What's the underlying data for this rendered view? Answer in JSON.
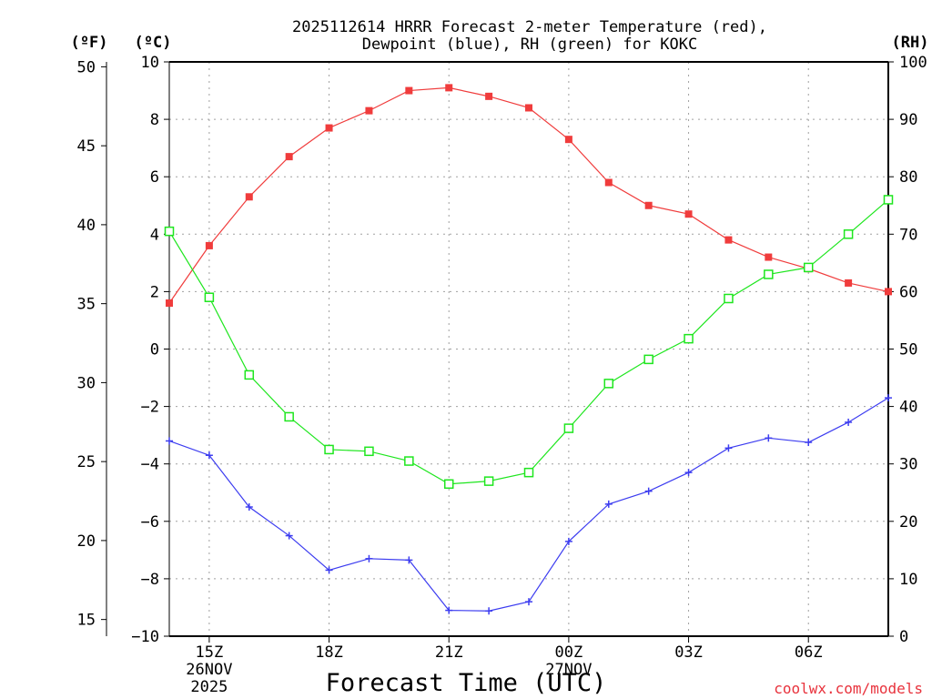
{
  "chart_data": {
    "type": "line",
    "title_line1": "2025112614 HRRR Forecast 2-meter Temperature (red),",
    "title_line2": "Dewpoint (blue), RH (green) for KOKC",
    "xlabel": "Forecast Time (UTC)",
    "credit": "coolwx.com/models",
    "unit_f": "(ºF)",
    "unit_c": "(ºC)",
    "unit_rh": "(RH)",
    "hours": [
      14,
      15,
      16,
      17,
      18,
      19,
      20,
      21,
      22,
      23,
      24,
      25,
      26,
      27,
      28,
      29,
      30,
      31,
      32
    ],
    "x_range": [
      14,
      32
    ],
    "x_ticks": [
      {
        "hour": 15,
        "lines": [
          "15Z",
          "26NOV",
          "2025"
        ]
      },
      {
        "hour": 18,
        "lines": [
          "18Z"
        ]
      },
      {
        "hour": 21,
        "lines": [
          "21Z"
        ]
      },
      {
        "hour": 24,
        "lines": [
          "00Z",
          "27NOV"
        ]
      },
      {
        "hour": 27,
        "lines": [
          "03Z"
        ]
      },
      {
        "hour": 30,
        "lines": [
          "06Z"
        ]
      }
    ],
    "c_axis": {
      "min": -10,
      "max": 10,
      "ticks": [
        "10",
        "8",
        "6",
        "4",
        "2",
        "0",
        "−2",
        "−4",
        "−6",
        "−8",
        "−10"
      ]
    },
    "f_axis": {
      "min": 14,
      "max": 50,
      "ticks": [
        "50",
        "45",
        "40",
        "35",
        "30",
        "25",
        "20",
        "15"
      ]
    },
    "rh_axis": {
      "min": 0,
      "max": 100,
      "ticks": [
        "100",
        "90",
        "80",
        "70",
        "60",
        "50",
        "40",
        "30",
        "20",
        "10",
        "0"
      ]
    },
    "series": [
      {
        "name": "Temperature",
        "axis": "c",
        "color": "#f03c3c",
        "marker": "filled-square",
        "values": [
          1.6,
          3.6,
          5.3,
          6.7,
          7.7,
          8.3,
          9.0,
          9.1,
          8.8,
          8.4,
          7.3,
          5.8,
          5.0,
          4.7,
          3.8,
          3.2,
          2.8,
          2.3,
          2.0
        ]
      },
      {
        "name": "Dewpoint",
        "axis": "c",
        "color": "#3c3cf0",
        "marker": "plus",
        "values": [
          -3.2,
          -3.7,
          -5.5,
          -6.5,
          -7.7,
          -7.3,
          -7.35,
          -9.1,
          -9.12,
          -8.8,
          -6.7,
          -5.4,
          -4.95,
          -4.3,
          -3.45,
          -3.1,
          -3.25,
          -2.55,
          -1.7
        ]
      },
      {
        "name": "RH",
        "axis": "rh",
        "color": "#1ee61e",
        "marker": "open-square",
        "values": [
          70.5,
          59.0,
          45.5,
          38.2,
          32.5,
          32.2,
          30.5,
          26.5,
          27.0,
          28.5,
          36.2,
          44.0,
          48.2,
          51.8,
          58.8,
          63.0,
          64.2,
          70.0,
          76.0
        ]
      }
    ]
  }
}
